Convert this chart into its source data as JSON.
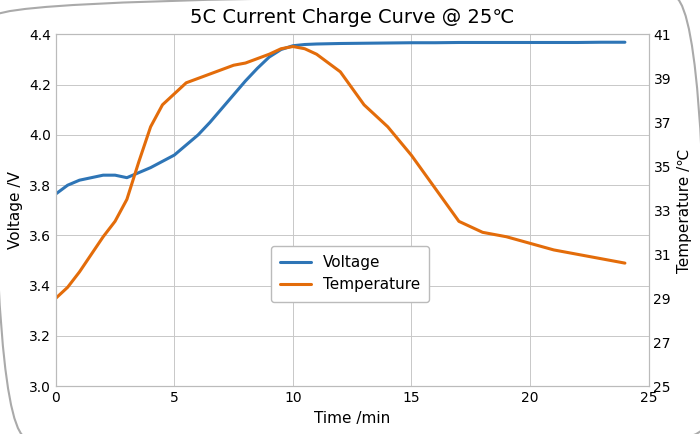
{
  "title": "5C Current Charge Curve @ 25℃",
  "xlabel": "Time /min",
  "ylabel_left": "Voltage /V",
  "ylabel_right": "Temperature /℃",
  "voltage_x": [
    0,
    0.5,
    1,
    1.5,
    2,
    2.5,
    3,
    3.5,
    4,
    4.5,
    5,
    5.5,
    6,
    6.5,
    7,
    7.5,
    8,
    8.5,
    9,
    9.5,
    10,
    10.5,
    11,
    12,
    13,
    14,
    15,
    16,
    17,
    18,
    19,
    20,
    21,
    22,
    23,
    24
  ],
  "voltage_y": [
    3.765,
    3.8,
    3.82,
    3.83,
    3.84,
    3.84,
    3.83,
    3.85,
    3.87,
    3.895,
    3.92,
    3.96,
    4.0,
    4.05,
    4.105,
    4.16,
    4.215,
    4.265,
    4.31,
    4.34,
    4.355,
    4.36,
    4.362,
    4.364,
    4.365,
    4.366,
    4.367,
    4.367,
    4.368,
    4.368,
    4.368,
    4.368,
    4.368,
    4.368,
    4.369,
    4.369
  ],
  "temp_x": [
    0,
    0.5,
    1,
    1.5,
    2,
    2.5,
    3,
    3.5,
    4,
    4.5,
    5,
    5.5,
    6,
    6.5,
    7,
    7.5,
    8,
    8.5,
    9,
    9.5,
    10,
    10.5,
    11,
    12,
    13,
    14,
    15,
    16,
    17,
    18,
    19,
    20,
    21,
    22,
    23,
    24
  ],
  "temp_y": [
    29.0,
    29.5,
    30.2,
    31.0,
    31.8,
    32.5,
    33.5,
    35.2,
    36.8,
    37.8,
    38.3,
    38.8,
    39.0,
    39.2,
    39.4,
    39.6,
    39.7,
    39.9,
    40.1,
    40.35,
    40.45,
    40.35,
    40.1,
    39.3,
    37.8,
    36.8,
    35.5,
    34.0,
    32.5,
    32.0,
    31.8,
    31.5,
    31.2,
    31.0,
    30.8,
    30.6
  ],
  "voltage_color": "#2E75B6",
  "temp_color": "#E36C0A",
  "xlim": [
    0,
    25
  ],
  "ylim_left": [
    3.0,
    4.4
  ],
  "ylim_right": [
    25,
    41
  ],
  "xticks": [
    0,
    5,
    10,
    15,
    20,
    25
  ],
  "yticks_left": [
    3.0,
    3.2,
    3.4,
    3.6,
    3.8,
    4.0,
    4.2,
    4.4
  ],
  "yticks_right": [
    25,
    27,
    29,
    31,
    33,
    35,
    37,
    39,
    41
  ],
  "grid_color": "#C8C8C8",
  "background_color": "#FFFFFF",
  "outer_background": "#FFFFFF",
  "legend_labels": [
    "Voltage",
    "Temperature"
  ],
  "title_fontsize": 14,
  "label_fontsize": 11,
  "tick_fontsize": 10,
  "legend_fontsize": 11,
  "line_width": 2.2
}
